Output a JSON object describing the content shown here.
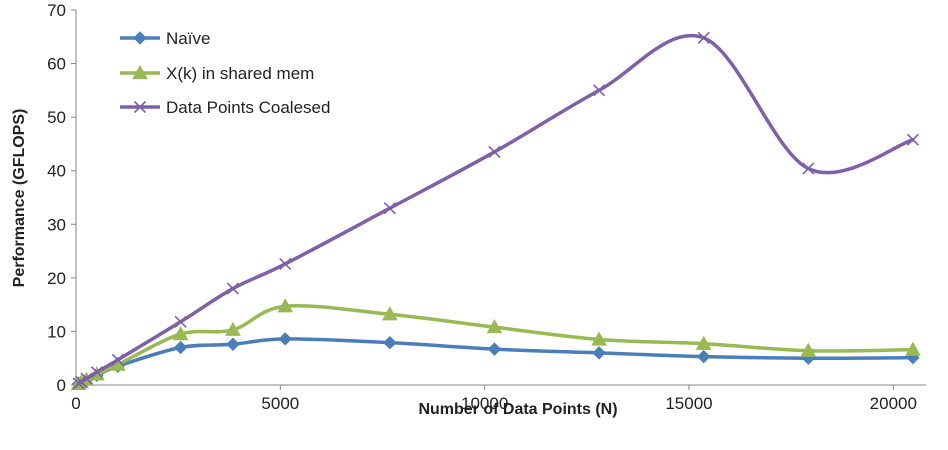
{
  "chart_data": {
    "type": "line",
    "title": "",
    "xlabel": "Number of Data Points (N)",
    "ylabel": "Performance (GFLOPS)",
    "xlim": [
      0,
      20800
    ],
    "ylim": [
      0,
      70
    ],
    "xticks": [
      0,
      5000,
      10000,
      15000,
      20000
    ],
    "yticks": [
      0,
      10,
      20,
      30,
      40,
      50,
      60,
      70
    ],
    "smooth": true,
    "grid": false,
    "legend_position": "top-left",
    "series": [
      {
        "name": "Naïve",
        "color": "#4a7ebb",
        "marker": "diamond",
        "x": [
          64,
          128,
          256,
          512,
          1024,
          2560,
          3840,
          5120,
          7680,
          10240,
          12800,
          15360,
          17920,
          20480
        ],
        "y": [
          0.2,
          0.4,
          0.9,
          1.8,
          3.5,
          7.0,
          7.6,
          8.6,
          7.9,
          6.7,
          6.0,
          5.3,
          5.0,
          5.1
        ]
      },
      {
        "name": "X(k) in shared mem",
        "color": "#98b954",
        "marker": "triangle",
        "x": [
          64,
          128,
          256,
          512,
          1024,
          2560,
          3840,
          5120,
          7680,
          10240,
          12800,
          15360,
          17920,
          20480
        ],
        "y": [
          0.2,
          0.5,
          1.0,
          2.0,
          3.8,
          9.5,
          10.3,
          14.7,
          13.2,
          10.8,
          8.5,
          7.7,
          6.4,
          6.6
        ]
      },
      {
        "name": "Data Points Coalesed",
        "color": "#7e5fa8",
        "marker": "x",
        "x": [
          64,
          128,
          256,
          512,
          1024,
          2560,
          3840,
          5120,
          7680,
          10240,
          12800,
          15360,
          17920,
          20480
        ],
        "y": [
          0.3,
          0.6,
          1.2,
          2.4,
          4.7,
          11.8,
          18.0,
          22.6,
          33.0,
          43.5,
          55.0,
          64.8,
          40.4,
          45.8
        ]
      }
    ]
  }
}
